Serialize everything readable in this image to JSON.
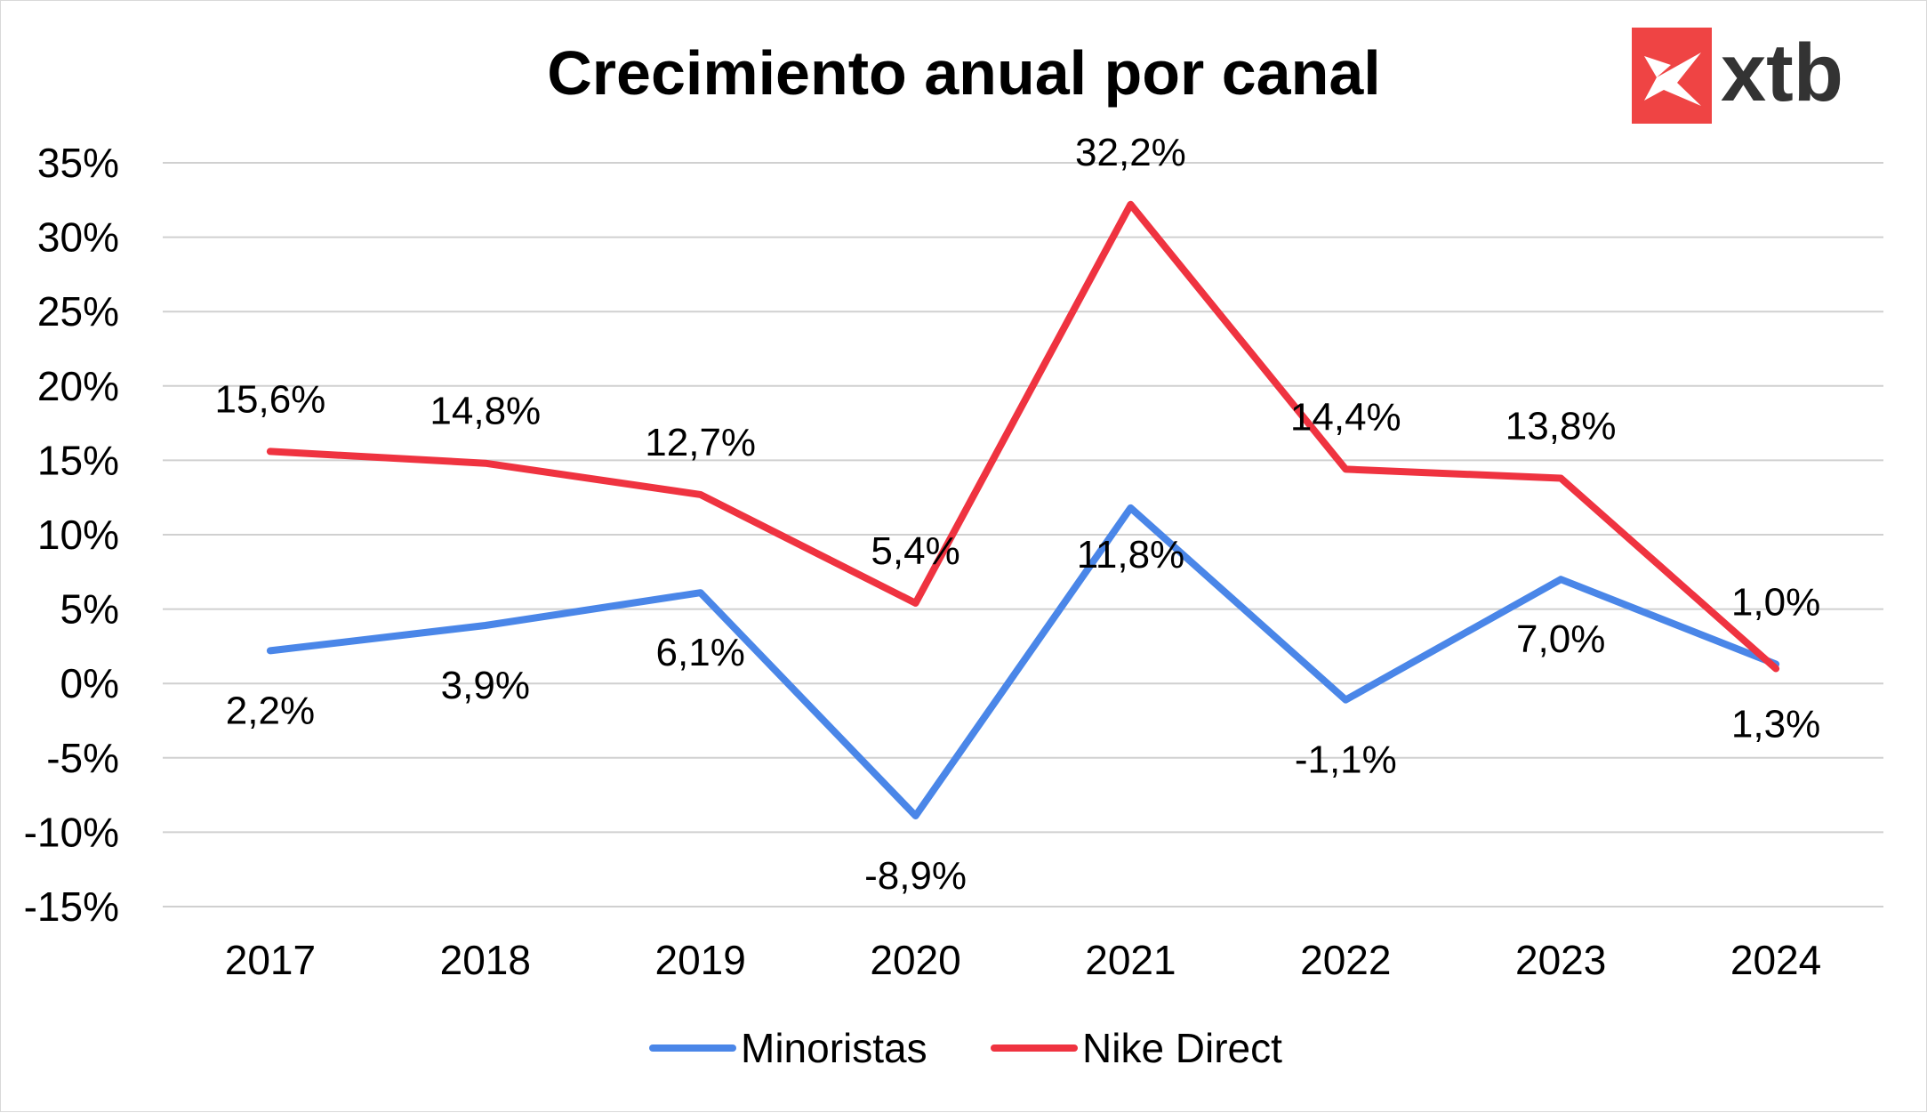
{
  "logo": {
    "text": "xtb",
    "icon": "xtb-x-icon",
    "box_color": "#ef4444"
  },
  "chart_data": {
    "type": "line",
    "title": "Crecimiento anual por canal",
    "categories": [
      "2017",
      "2018",
      "2019",
      "2020",
      "2021",
      "2022",
      "2023",
      "2024"
    ],
    "ylim": [
      -15,
      35
    ],
    "yticks": [
      35,
      30,
      25,
      20,
      15,
      10,
      5,
      0,
      -5,
      -10,
      -15
    ],
    "ytick_labels": [
      "35%",
      "30%",
      "25%",
      "20%",
      "15%",
      "10%",
      "5%",
      "0%",
      "-5%",
      "-10%",
      "-15%"
    ],
    "grid": true,
    "legend": "bottom",
    "series": [
      {
        "name": "Minoristas",
        "color": "#4a86e8",
        "values": [
          2.2,
          3.9,
          6.1,
          -8.9,
          11.8,
          -1.1,
          7.0,
          1.3
        ],
        "labels": [
          "2,2%",
          "3,9%",
          "6,1%",
          "-8,9%",
          "11,8%",
          "-1,1%",
          "7,0%",
          "1,3%"
        ]
      },
      {
        "name": "Nike Direct",
        "color": "#ef3340",
        "values": [
          15.6,
          14.8,
          12.7,
          5.4,
          32.2,
          14.4,
          13.8,
          1.0
        ],
        "labels": [
          "15,6%",
          "14,8%",
          "12,7%",
          "5,4%",
          "32,2%",
          "14,4%",
          "13,8%",
          "1,0%"
        ]
      }
    ]
  }
}
